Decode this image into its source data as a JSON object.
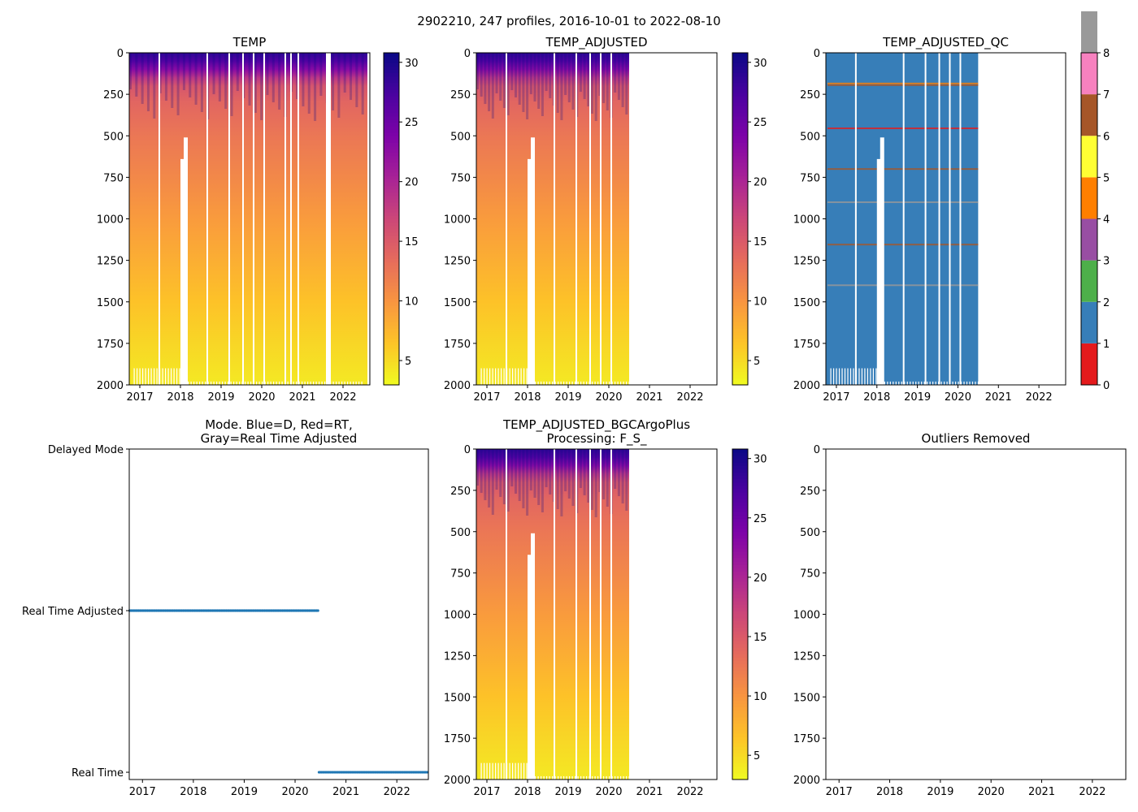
{
  "figure": {
    "suptitle": "2902210, 247 profiles, 2016-10-01 to 2022-08-10"
  },
  "colors": {
    "plasma_r_stops": [
      "#f0f921",
      "#fdc328",
      "#f89540",
      "#e66c5c",
      "#cc4778",
      "#a82296",
      "#7e03a8",
      "#4c02a1",
      "#0d0887"
    ],
    "qc_colors": [
      "#e41a1c",
      "#377eb8",
      "#4daf4a",
      "#984ea3",
      "#ff7f00",
      "#ffff33",
      "#a65628",
      "#f781bf",
      "#999999"
    ],
    "mode_points": "#1f77b4"
  },
  "chart_data": [
    {
      "id": "temp",
      "type": "heatmap",
      "title": "TEMP",
      "xlim": [
        2016.74,
        2022.66
      ],
      "xticks": [
        2017,
        2018,
        2019,
        2020,
        2021,
        2022
      ],
      "ylim": [
        2000,
        0
      ],
      "yticks": [
        0,
        250,
        500,
        750,
        1000,
        1250,
        1500,
        1750,
        2000
      ],
      "data_end": 2022.6,
      "mean_profile": {
        "depth": [
          0,
          50,
          100,
          150,
          200,
          300,
          500,
          750,
          1000,
          1250,
          1500,
          1750,
          2000
        ],
        "temp": [
          29,
          27,
          23,
          18.5,
          15.5,
          14,
          12.5,
          11,
          9.5,
          8,
          6.5,
          5.2,
          4
        ]
      },
      "gaps": [
        [
          2017.46,
          0.04
        ],
        [
          2018.64,
          0.04
        ],
        [
          2019.18,
          0.04
        ],
        [
          2019.52,
          0.04
        ],
        [
          2019.78,
          0.04
        ],
        [
          2020.04,
          0.04
        ],
        [
          2020.56,
          0.04
        ],
        [
          2020.7,
          0.04
        ],
        [
          2020.88,
          0.04
        ],
        [
          2021.58,
          0.12
        ]
      ],
      "notch": [
        [
          2018.0,
          2018.1,
          640
        ],
        [
          2018.08,
          2018.18,
          510
        ]
      ],
      "colorbar": {
        "range": [
          2.96,
          30.8
        ],
        "ticks": [
          5,
          10,
          15,
          20,
          25,
          30
        ]
      }
    },
    {
      "id": "temp_adj",
      "type": "heatmap",
      "title": "TEMP_ADJUSTED",
      "xlim": [
        2016.74,
        2022.66
      ],
      "xticks": [
        2017,
        2018,
        2019,
        2020,
        2021,
        2022
      ],
      "ylim": [
        2000,
        0
      ],
      "yticks": [
        0,
        250,
        500,
        750,
        1000,
        1250,
        1500,
        1750,
        2000
      ],
      "data_end": 2020.5,
      "gaps": [
        [
          2017.46,
          0.04
        ],
        [
          2018.64,
          0.04
        ],
        [
          2019.18,
          0.04
        ],
        [
          2019.52,
          0.04
        ],
        [
          2019.78,
          0.04
        ],
        [
          2020.04,
          0.04
        ]
      ],
      "notch": [
        [
          2018.0,
          2018.1,
          640
        ],
        [
          2018.08,
          2018.18,
          510
        ]
      ],
      "colorbar": {
        "range": [
          2.96,
          30.8
        ],
        "ticks": [
          5,
          10,
          15,
          20,
          25,
          30
        ]
      }
    },
    {
      "id": "temp_adj_qc",
      "type": "heatmap",
      "title": "TEMP_ADJUSTED_QC",
      "xlim": [
        2016.74,
        2022.66
      ],
      "xticks": [
        2017,
        2018,
        2019,
        2020,
        2021,
        2022
      ],
      "ylim": [
        2000,
        0
      ],
      "yticks": [
        0,
        250,
        500,
        750,
        1000,
        1250,
        1500,
        1750,
        2000
      ],
      "data_end": 2020.5,
      "dominant_flag": 1,
      "flag_lines": [
        {
          "depth": 185,
          "flag": 4
        },
        {
          "depth": 195,
          "flag": 6
        },
        {
          "depth": 455,
          "flag": 0
        },
        {
          "depth": 700,
          "flag": 6
        },
        {
          "depth": 900,
          "flag": 8
        },
        {
          "depth": 1155,
          "flag": 6
        },
        {
          "depth": 1400,
          "flag": 8
        }
      ],
      "gaps": [
        [
          2017.46,
          0.04
        ],
        [
          2018.64,
          0.04
        ],
        [
          2019.18,
          0.04
        ],
        [
          2019.52,
          0.04
        ],
        [
          2019.78,
          0.04
        ],
        [
          2020.04,
          0.04
        ]
      ],
      "notch": [
        [
          2018.0,
          2018.1,
          640
        ],
        [
          2018.08,
          2018.18,
          510
        ]
      ],
      "colorbar": {
        "range": [
          0,
          8
        ],
        "ticks": [
          0,
          1,
          2,
          3,
          4,
          5,
          6,
          7,
          8
        ]
      }
    },
    {
      "id": "mode",
      "type": "scatter",
      "title": "Mode. Blue=D, Red=RT,\nGray=Real Time Adjusted",
      "xlim": [
        2016.74,
        2022.62
      ],
      "xticks": [
        2017,
        2018,
        2019,
        2020,
        2021,
        2022
      ],
      "ylim": [
        -0.045,
        2
      ],
      "yticks": [
        0,
        1,
        2
      ],
      "yticklabels": [
        "Real Time",
        "Real Time Adjusted",
        "Delayed Mode"
      ],
      "segments": [
        {
          "from": 2016.75,
          "to": 2020.47,
          "value": 1
        },
        {
          "from": 2020.47,
          "to": 2022.62,
          "value": 0
        }
      ]
    },
    {
      "id": "bgc",
      "type": "heatmap",
      "title": "TEMP_ADJUSTED_BGCArgoPlus\nProcessing: F_S_",
      "xlim": [
        2016.74,
        2022.66
      ],
      "xticks": [
        2017,
        2018,
        2019,
        2020,
        2021,
        2022
      ],
      "ylim": [
        2000,
        0
      ],
      "yticks": [
        0,
        250,
        500,
        750,
        1000,
        1250,
        1500,
        1750,
        2000
      ],
      "data_end": 2020.5,
      "gaps": [
        [
          2017.46,
          0.04
        ],
        [
          2018.64,
          0.04
        ],
        [
          2019.18,
          0.04
        ],
        [
          2019.52,
          0.04
        ],
        [
          2019.78,
          0.04
        ],
        [
          2020.04,
          0.04
        ]
      ],
      "notch": [
        [
          2018.0,
          2018.1,
          640
        ],
        [
          2018.08,
          2018.18,
          510
        ]
      ],
      "colorbar": {
        "range": [
          2.96,
          30.8
        ],
        "ticks": [
          5,
          10,
          15,
          20,
          25,
          30
        ]
      }
    },
    {
      "id": "outliers",
      "type": "scatter",
      "title": "Outliers Removed",
      "xlim": [
        2016.74,
        2022.66
      ],
      "xticks": [
        2017,
        2018,
        2019,
        2020,
        2021,
        2022
      ],
      "ylim": [
        2000,
        0
      ],
      "yticks": [
        0,
        250,
        500,
        750,
        1000,
        1250,
        1500,
        1750,
        2000
      ],
      "segments": []
    }
  ]
}
